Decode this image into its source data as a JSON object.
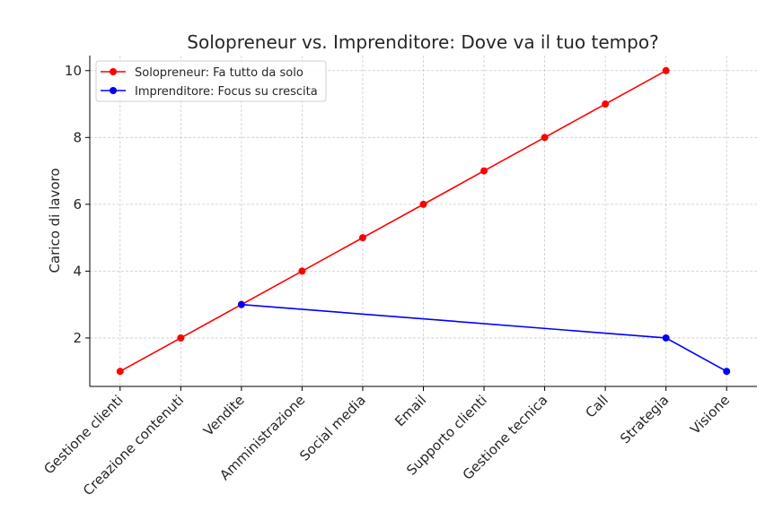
{
  "chart_data": {
    "type": "line",
    "title": "Solopreneur vs. Imprenditore: Dove va il tuo tempo?",
    "xlabel": "",
    "ylabel": "Carico di lavoro",
    "categories": [
      "Gestione clienti",
      "Creazione contenuti",
      "Vendite",
      "Amministrazione",
      "Social media",
      "Email",
      "Supporto clienti",
      "Gestione tecnica",
      "Call",
      "Strategia",
      "Visione"
    ],
    "ylim": [
      0.55,
      10.45
    ],
    "yticks": [
      2,
      4,
      6,
      8,
      10
    ],
    "grid": true,
    "legend_position": "top-left",
    "series": [
      {
        "name": "Solopreneur: Fa tutto da solo",
        "color": "#ff0000",
        "points": [
          [
            "Gestione clienti",
            1
          ],
          [
            "Creazione contenuti",
            2
          ],
          [
            "Vendite",
            3
          ],
          [
            "Amministrazione",
            4
          ],
          [
            "Social media",
            5
          ],
          [
            "Email",
            6
          ],
          [
            "Supporto clienti",
            7
          ],
          [
            "Gestione tecnica",
            8
          ],
          [
            "Call",
            9
          ],
          [
            "Strategia",
            10
          ]
        ]
      },
      {
        "name": "Imprenditore: Focus su crescita",
        "color": "#0000ff",
        "points": [
          [
            "Vendite",
            3
          ],
          [
            "Strategia",
            2
          ],
          [
            "Visione",
            1
          ]
        ]
      }
    ]
  }
}
